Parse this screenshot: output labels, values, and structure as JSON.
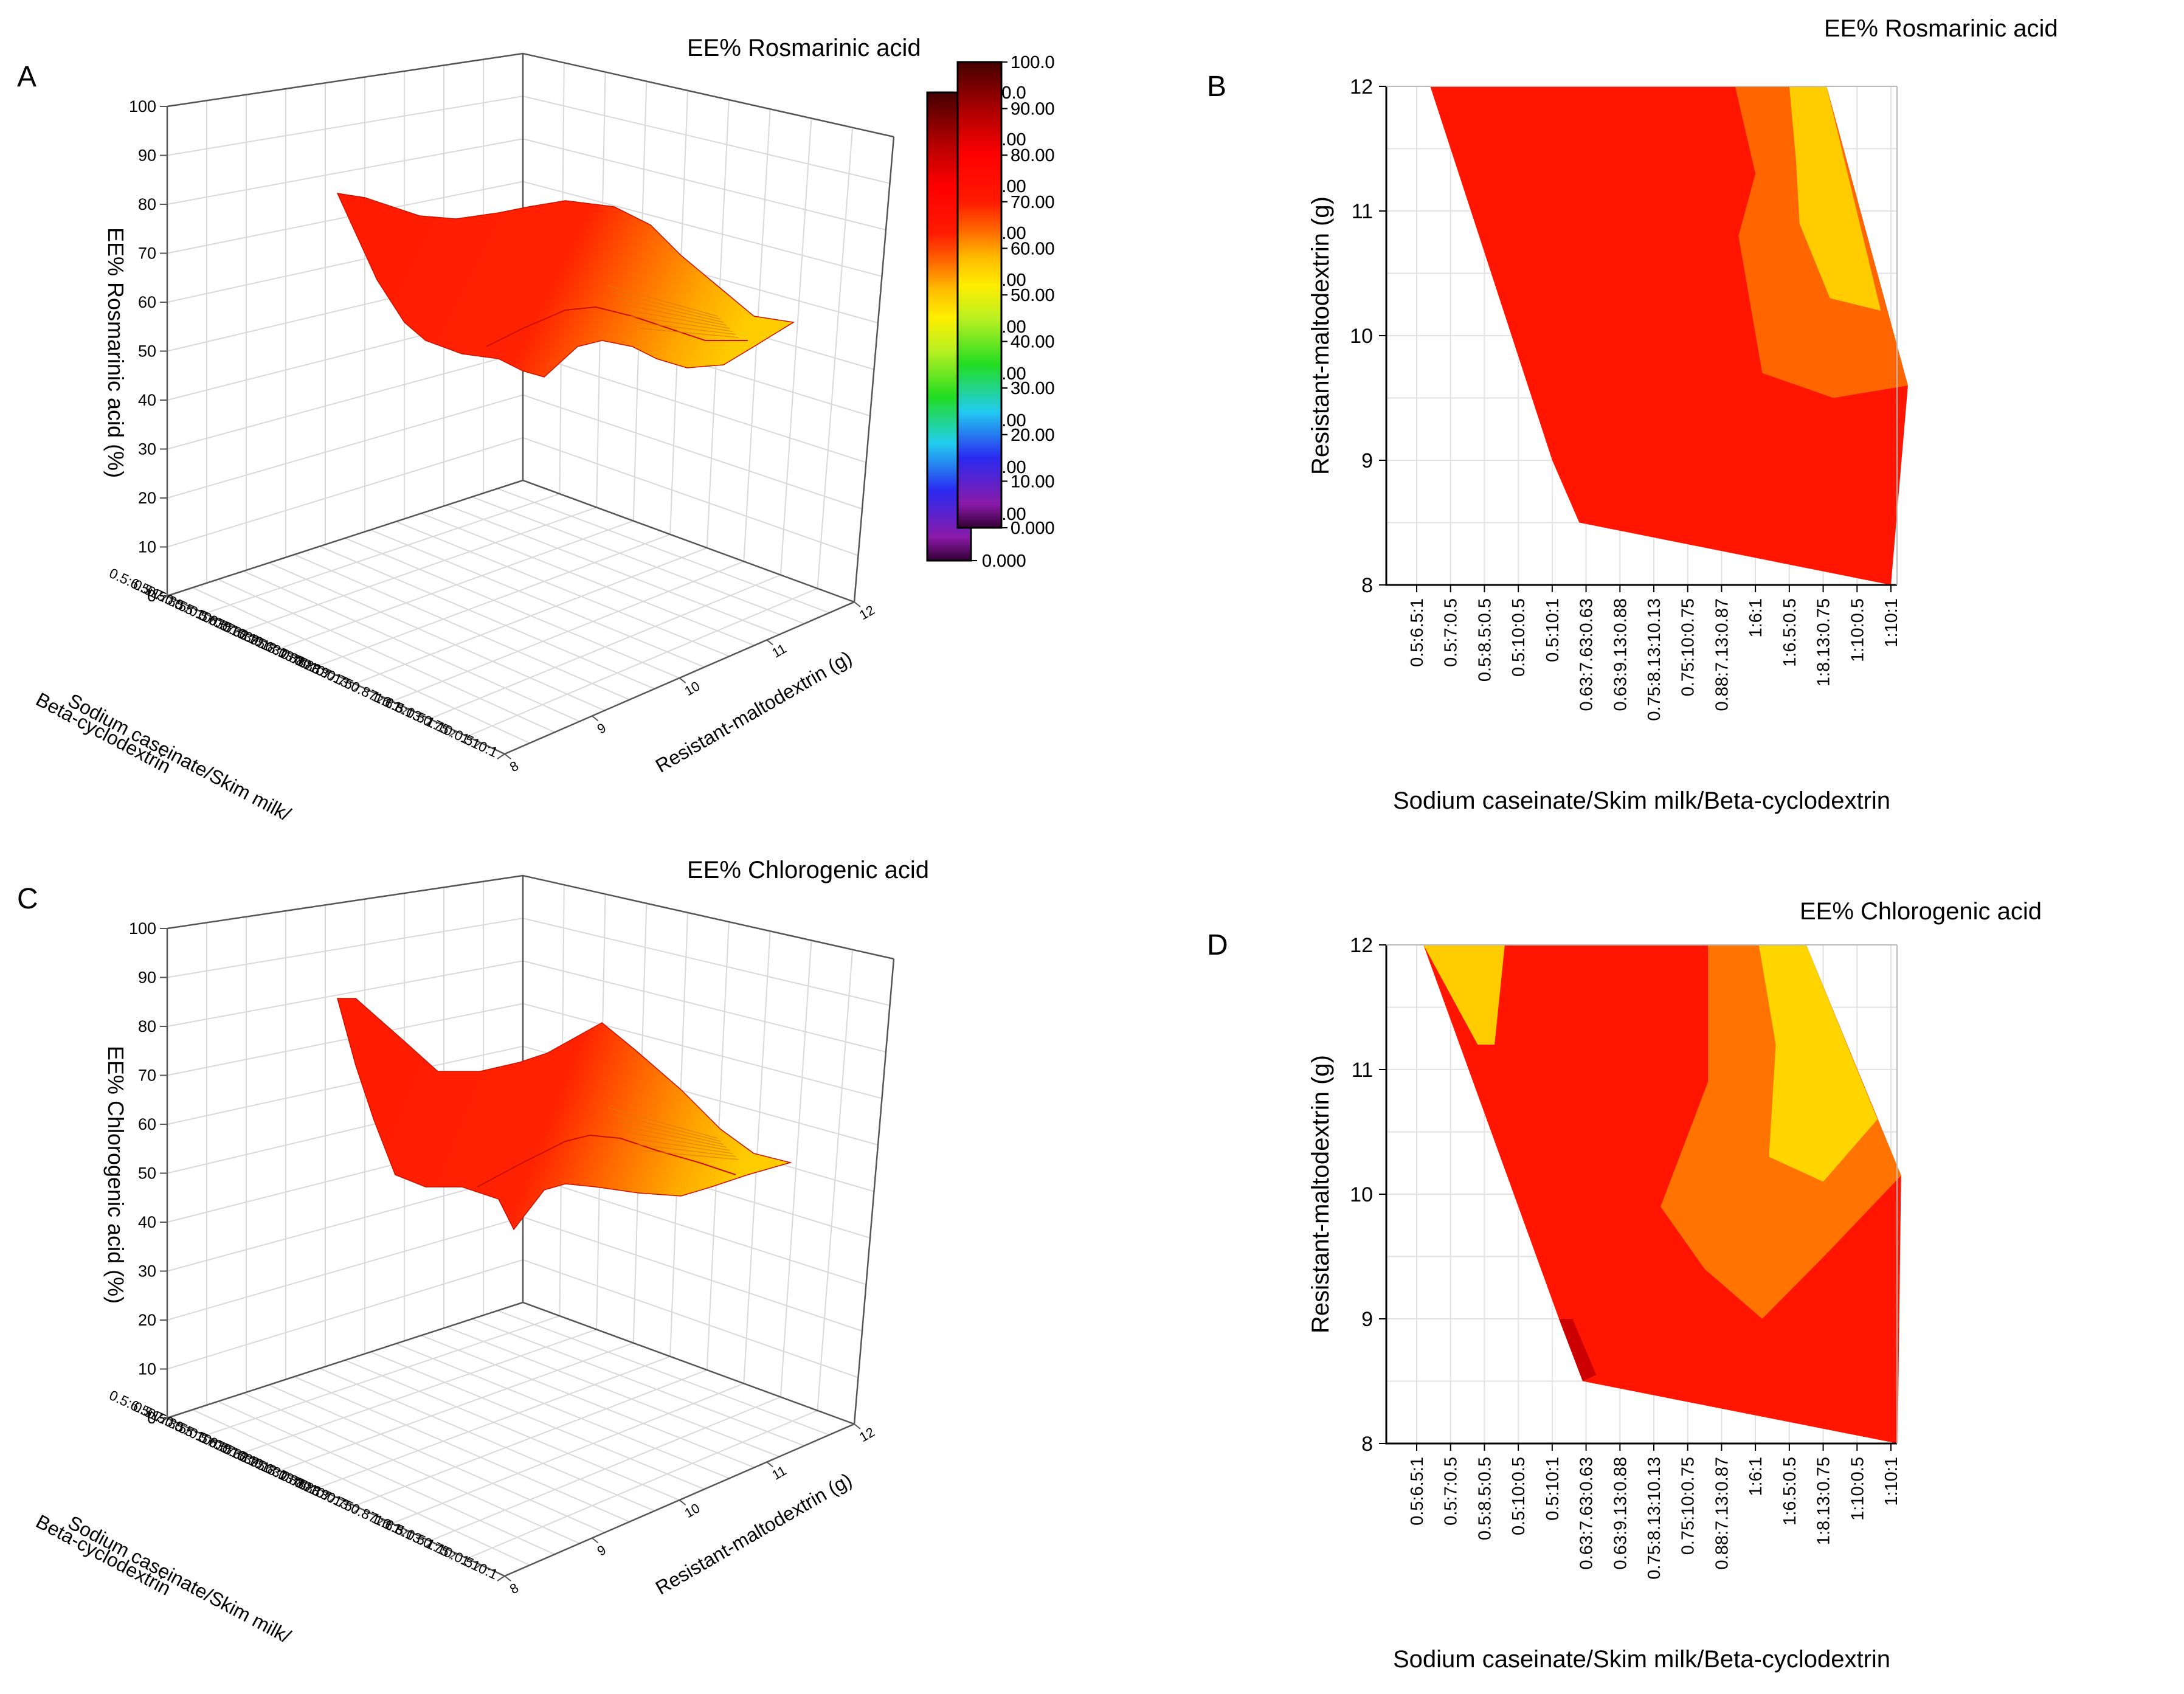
{
  "figure": {
    "panel_letters": [
      "A",
      "B",
      "C",
      "D"
    ]
  },
  "colorbar": {
    "ticks": [
      "100.0",
      "90.00",
      "80.00",
      "70.00",
      "60.00",
      "50.00",
      "40.00",
      "30.00",
      "20.00",
      "10.00",
      "0.000"
    ],
    "stops": [
      {
        "value": 0,
        "color": "#330033"
      },
      {
        "value": 5,
        "color": "#8a1aa8"
      },
      {
        "value": 15,
        "color": "#2a2af0"
      },
      {
        "value": 25,
        "color": "#22ccf0"
      },
      {
        "value": 35,
        "color": "#22dd22"
      },
      {
        "value": 45,
        "color": "#bbf022"
      },
      {
        "value": 52,
        "color": "#ffee00"
      },
      {
        "value": 58,
        "color": "#ffbb00"
      },
      {
        "value": 64,
        "color": "#ff6600"
      },
      {
        "value": 70,
        "color": "#ff1a00"
      },
      {
        "value": 80,
        "color": "#ff0000"
      },
      {
        "value": 90,
        "color": "#aa0000"
      },
      {
        "value": 100,
        "color": "#440000"
      }
    ]
  },
  "chart_data": [
    {
      "panel": "A",
      "type": "surface3d",
      "title": "EE% Rosmarinic acid",
      "zlabel": "EE% Rosmarinic acid (%)",
      "xlabel_lines": [
        "Sodium caseinate/Skim milk/",
        "Beta-cyclodextrin"
      ],
      "ylabel": "Resistant-maltodextrin (g)",
      "z_ticks": [
        "0",
        "10",
        "20",
        "30",
        "40",
        "50",
        "60",
        "70",
        "80",
        "90",
        "100"
      ],
      "y_ticks": [
        "8",
        "9",
        "10",
        "11",
        "12"
      ],
      "x_ticks": [
        "0.5:6.5:1",
        "0.5:7:0.5",
        "0.5:8.5:0.5",
        "0.5:10:0.5",
        "0.5:10:1",
        "0.63:7.63:0.63",
        "0.63:9.13:0.88",
        "0.75:8.13:10.13",
        "0.75:10:0.75",
        "0.88:7.13:0.87",
        "1:6:1",
        "1:6.5:0.5",
        "1:8.13:0.75",
        "1:10:0.5",
        "1:10:1"
      ],
      "zlim": [
        0,
        100
      ]
    },
    {
      "panel": "B",
      "type": "contour",
      "title": "EE% Rosmarinic acid",
      "xlabel": "Sodium caseinate/Skim milk/Beta-cyclodextrin",
      "ylabel": "Resistant-maltodextrin (g)",
      "y_ticks": [
        "8",
        "9",
        "10",
        "11",
        "12"
      ],
      "x_ticks": [
        "0.5:6.5:1",
        "0.5:7:0.5",
        "0.5:8.5:0.5",
        "0.5:10:0.5",
        "0.5:10:1",
        "0.63:7.63:0.63",
        "0.63:9.13:0.88",
        "0.75:8.13:10.13",
        "0.75:10:0.75",
        "0.88:7.13:0.87",
        "1:6:1",
        "1:6.5:0.5",
        "1:8.13:0.75",
        "1:10:0.5",
        "1:10:1"
      ],
      "ylim": [
        8,
        12
      ]
    },
    {
      "panel": "C",
      "type": "surface3d",
      "title": "EE% Chlorogenic acid",
      "zlabel": "EE% Chlorogenic acid (%)",
      "xlabel_lines": [
        "Sodium caseinate/Skim milk/",
        "Beta-cyclodextrin"
      ],
      "ylabel": "Resistant-maltodextrin (g)",
      "z_ticks": [
        "0",
        "10",
        "20",
        "30",
        "40",
        "50",
        "60",
        "70",
        "80",
        "90",
        "100"
      ],
      "y_ticks": [
        "8",
        "9",
        "10",
        "11",
        "12"
      ],
      "x_ticks": [
        "0.5:6.5:1",
        "0.5:7:0.5",
        "0.5:8.5:0.5",
        "0.5:10:0.5",
        "0.5:10:1",
        "0.63:7.63:0.63",
        "0.63:9.13:0.88",
        "0.75:8.13:10.13",
        "0.75:10:0.75",
        "0.88:7.13:0.87",
        "1:6:1",
        "1:6.5:0.5",
        "1:8.13:0.75",
        "1:10:0.5",
        "1:10:1"
      ],
      "zlim": [
        0,
        100
      ]
    },
    {
      "panel": "D",
      "type": "contour",
      "title": "EE% Chlorogenic acid",
      "xlabel": "Sodium caseinate/Skim milk/Beta-cyclodextrin",
      "ylabel": "Resistant-maltodextrin (g)",
      "y_ticks": [
        "8",
        "9",
        "10",
        "11",
        "12"
      ],
      "x_ticks": [
        "0.5:6.5:1",
        "0.5:7:0.5",
        "0.5:8.5:0.5",
        "0.5:10:0.5",
        "0.5:10:1",
        "0.63:7.63:0.63",
        "0.63:9.13:0.88",
        "0.75:8.13:10.13",
        "0.75:10:0.75",
        "0.88:7.13:0.87",
        "1:6:1",
        "1:6.5:0.5",
        "1:8.13:0.75",
        "1:10:0.5",
        "1:10:1"
      ],
      "ylim": [
        8,
        12
      ]
    }
  ]
}
